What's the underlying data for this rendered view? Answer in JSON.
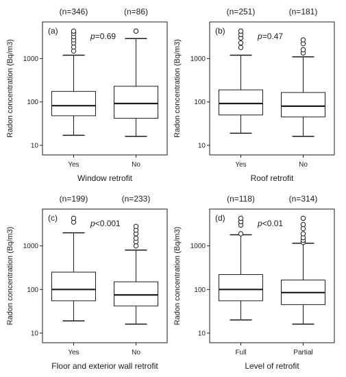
{
  "chart_data": [
    {
      "type": "box",
      "panel_label": "(a)",
      "p_value": {
        "prefix": "p",
        "text": "=0.69"
      },
      "xlabel": "Window retrofit",
      "ylabel": "Radon concentration (Bq/m3)",
      "ylog": true,
      "ylim": [
        6,
        7000
      ],
      "yticks": [
        "10",
        "100",
        "1000"
      ],
      "yticks_values": [
        10,
        100,
        1000
      ],
      "groups": [
        {
          "category": "Yes",
          "n_label": "(n=346)",
          "whisker_low": 17,
          "q1": 48,
          "median": 82,
          "q3": 175,
          "whisker_high": 1200,
          "outliers": [
            1500,
            1850,
            2300,
            2700,
            3200,
            3800,
            4300
          ]
        },
        {
          "category": "No",
          "n_label": "(n=86)",
          "whisker_low": 16,
          "q1": 42,
          "median": 92,
          "q3": 230,
          "whisker_high": 2900,
          "outliers": [
            4300
          ]
        }
      ]
    },
    {
      "type": "box",
      "panel_label": "(b)",
      "p_value": {
        "prefix": "p",
        "text": "=0.47"
      },
      "xlabel": "Roof retrofit",
      "ylabel": "Radon concentration (Bq/m3)",
      "ylog": true,
      "ylim": [
        6,
        7000
      ],
      "yticks": [
        "10",
        "100",
        "1000"
      ],
      "yticks_values": [
        10,
        100,
        1000
      ],
      "groups": [
        {
          "category": "Yes",
          "n_label": "(n=251)",
          "whisker_low": 19,
          "q1": 50,
          "median": 92,
          "q3": 190,
          "whisker_high": 1200,
          "outliers": [
            1800,
            2300,
            3000,
            3600,
            4300
          ]
        },
        {
          "category": "No",
          "n_label": "(n=181)",
          "whisker_low": 16,
          "q1": 45,
          "median": 80,
          "q3": 165,
          "whisker_high": 1100,
          "outliers": [
            1350,
            1600,
            2200,
            2700
          ]
        }
      ]
    },
    {
      "type": "box",
      "panel_label": "(c)",
      "p_value": {
        "prefix": "p",
        "text": "<0.001"
      },
      "xlabel": "Floor and exterior wall retrofit",
      "ylabel": "Radon concentration (Bq/m3)",
      "ylog": true,
      "ylim": [
        6,
        7000
      ],
      "yticks": [
        "10",
        "100",
        "1000"
      ],
      "yticks_values": [
        10,
        100,
        1000
      ],
      "groups": [
        {
          "category": "Yes",
          "n_label": "(n=199)",
          "whisker_low": 19,
          "q1": 55,
          "median": 100,
          "q3": 250,
          "whisker_high": 2000,
          "outliers": [
            3500,
            4300
          ]
        },
        {
          "category": "No",
          "n_label": "(n=233)",
          "whisker_low": 16,
          "q1": 42,
          "median": 75,
          "q3": 150,
          "whisker_high": 800,
          "outliers": [
            1000,
            1250,
            1500,
            1900,
            2300,
            2800
          ]
        }
      ]
    },
    {
      "type": "box",
      "panel_label": "(d)",
      "p_value": {
        "prefix": "p",
        "text": "<0.01"
      },
      "xlabel": "Level of retrofit",
      "ylabel": "Radon concentration (Bq/m3)",
      "ylog": true,
      "ylim": [
        6,
        7000
      ],
      "yticks": [
        "10",
        "100",
        "1000"
      ],
      "yticks_values": [
        10,
        100,
        1000
      ],
      "groups": [
        {
          "category": "Full",
          "n_label": "(n=118)",
          "whisker_low": 20,
          "q1": 55,
          "median": 100,
          "q3": 220,
          "whisker_high": 1800,
          "outliers": [
            1900,
            3000,
            3600,
            4300
          ]
        },
        {
          "category": "Partial",
          "n_label": "(n=314)",
          "whisker_low": 16,
          "q1": 45,
          "median": 85,
          "q3": 165,
          "whisker_high": 1150,
          "outliers": [
            1200,
            1350,
            1550,
            1900,
            2500,
            3100,
            4300
          ]
        }
      ]
    }
  ]
}
